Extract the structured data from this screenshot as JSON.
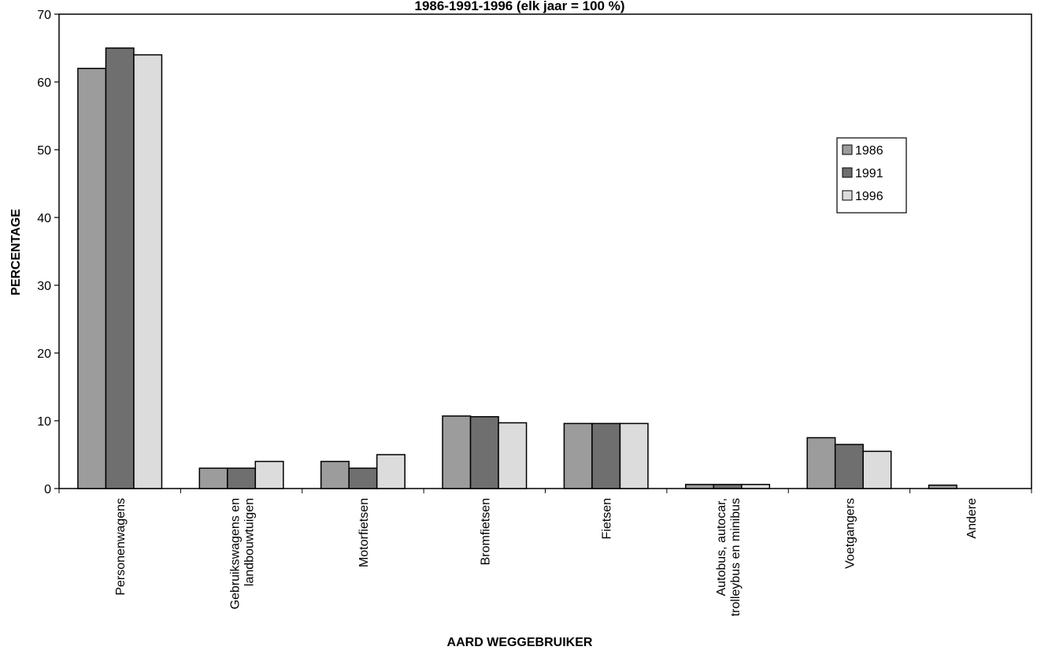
{
  "chart_data": {
    "type": "bar",
    "title": "1986-1991-1996 (elk jaar = 100 %)",
    "x_label": "AARD WEGGEBRUIKER",
    "y_label": "PERCENTAGE",
    "categories": [
      "Personenwagens",
      "Gebruikswagens en\nlandbouwtuigen",
      "Motorfietsen",
      "Bromfietsen",
      "Fietsen",
      "Autobus, autocar,\ntrolleybus en minibus",
      "Voetgangers",
      "Andere"
    ],
    "series": [
      {
        "name": "1986",
        "color": "#9c9c9c",
        "values": [
          62,
          3,
          4,
          10.7,
          9.6,
          0.6,
          7.5,
          0.5
        ]
      },
      {
        "name": "1991",
        "color": "#6f6f6f",
        "values": [
          65,
          3,
          3,
          10.6,
          9.6,
          0.6,
          6.5,
          0
        ]
      },
      {
        "name": "1996",
        "color": "#dcdcdc",
        "values": [
          64,
          4,
          5,
          9.7,
          9.6,
          0.6,
          5.5,
          0
        ]
      }
    ],
    "ylim": [
      0,
      70
    ],
    "yticks": [
      0,
      10,
      20,
      30,
      40,
      50,
      60,
      70
    ],
    "grid": false,
    "legend": "right"
  }
}
